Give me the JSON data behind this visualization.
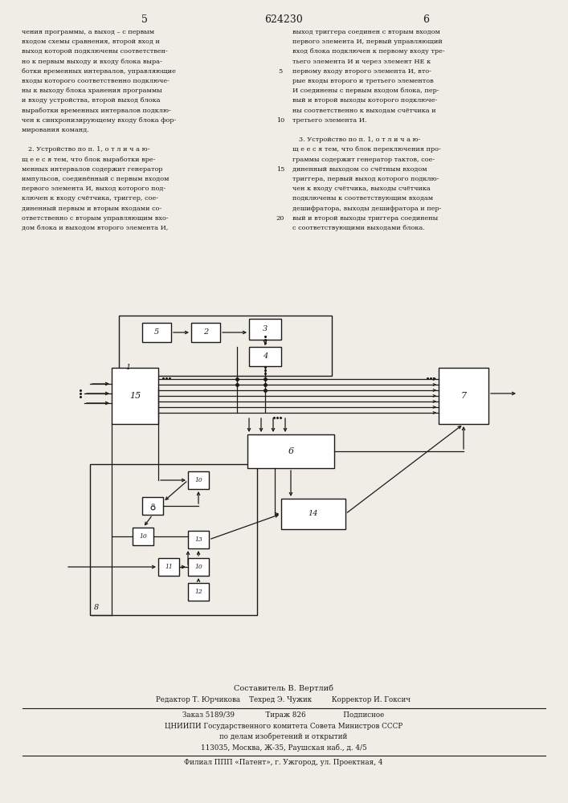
{
  "page_number_left": "5",
  "patent_number": "624230",
  "page_number_right": "6",
  "bg_color": "#f0ede6",
  "text_color": "#1a1a1a",
  "left_column_text": [
    "чения программы, а выход – с первым",
    "входом схемы сравнения, второй вход и",
    "выход которой подключены соответствен-",
    "но к первым выходу и входу блока выра-",
    "ботки временных интервалов, управляющие",
    "входы которого соответственно подключе-",
    "ны к выходу блока хранения программы",
    "и входу устройства, второй выход блока",
    "выработки временных интервалов подклю-",
    "чен к синхронизирующему входу блока фор-",
    "мирования команд.",
    "",
    "   2. Устройство по п. 1, о т л и ч а ю-",
    "щ е е с я тем, что блок выработки вре-",
    "менных интервалов содержит генератор",
    "импульсов, соединённый с первым входом",
    "первого элемента И, выход которого под-",
    "ключен к входу счётчика, триггер, сое-",
    "диненный первым и вторым входами со-",
    "ответственно с вторым управляющим вхо-",
    "дом блока и выходом второго элемента И,"
  ],
  "right_column_text": [
    "выход триггера соединен с вторым входом",
    "первого элемента И, первый управляющий",
    "вход блока подключен к первому входу тре-",
    "тьего элемента И и через элемент НЕ к",
    "первому входу второго элемента И, вто-",
    "рые входы второго и третьего элементов",
    "И соединены с первым входом блока, пер-",
    "вый и второй выходы которого подключе-",
    "ны соответственно к выходам счётчика и",
    "третьего элемента И.",
    "",
    "   3. Устройство по п. 1, о т л и ч а ю-",
    "щ е е с я тем, что блок переключения про-",
    "граммы содержит генератор тактов, сое-",
    "диненный выходом со счётным входом",
    "триггера, первый выход которого подклю-",
    "чен к входу счётчика, выходы счётчика",
    "подключены к соответствующим входам",
    "дешифратора, выходы дешифратора и пер-",
    "вый и второй выходы триггера соединены",
    "с соответствующими выходами блока."
  ],
  "line_num_rows": [
    4,
    9,
    14,
    19
  ],
  "line_num_labels": [
    "5",
    "10",
    "15",
    "20"
  ],
  "footer_lines": [
    "Составитель В. Вертлиб",
    "Редактор Т. Юрчикова    Техред Э. Чужик         Корректор И. Гоксич",
    "Заказ 5189/39              Тираж 826                 Подписное",
    "ЦНИИПИ Государственного комитета Совета Министров СССР",
    "по делам изобретений и открытий",
    "113035, Москва, Ж-35, Раушская наб., д. 4/5",
    "Филиал ППП «Патент», г. Ужгород, ул. Проектная, 4"
  ]
}
